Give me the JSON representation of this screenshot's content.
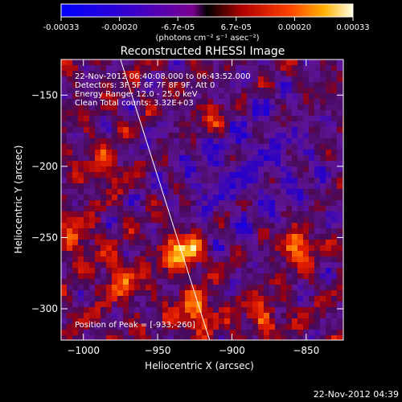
{
  "chart_data": {
    "type": "heatmap",
    "title": "Reconstructed RHESSI Image",
    "xlabel": "Heliocentric X (arcsec)",
    "ylabel": "Heliocentric Y (arcsec)",
    "xlim": [
      -1015,
      -825
    ],
    "ylim": [
      -322,
      -125
    ],
    "x_ticks": [
      -1000,
      -950,
      -900,
      -850
    ],
    "y_ticks": [
      -150,
      -200,
      -250,
      -300
    ],
    "colorbar": {
      "min": -0.00033,
      "max": 0.00033,
      "ticks": [
        "-0.00033",
        "-0.00020",
        "-6.7e-05",
        "6.7e-05",
        "0.00020",
        "0.00033"
      ],
      "label": "(photons cm⁻² s⁻¹ asec⁻²)"
    },
    "info_lines": [
      "22-Nov-2012 06:40:08.000 to 06:43:52.000",
      "Detectors: 3F 5F 6F 7F 8F 9F, Att 0",
      "Energy Range: 12.0 - 25.0 keV",
      "Clean    Total counts: 3.32E+03"
    ],
    "peak_text": "Position of Peak = [-933,-260]",
    "peak": [
      -933,
      -260
    ],
    "limb_line": [
      [
        -975,
        -125
      ],
      [
        -915,
        -322
      ]
    ],
    "hot_spots": [
      {
        "x": -933,
        "y": -260,
        "amp": 1.0
      },
      {
        "x": -925,
        "y": -302,
        "amp": 0.7
      },
      {
        "x": -857,
        "y": -256,
        "amp": 0.8
      },
      {
        "x": -975,
        "y": -278,
        "amp": 0.55
      },
      {
        "x": -985,
        "y": -200,
        "amp": 0.45
      },
      {
        "x": -915,
        "y": -165,
        "amp": 0.5
      },
      {
        "x": -1005,
        "y": -250,
        "amp": 0.45
      },
      {
        "x": -880,
        "y": -305,
        "amp": 0.45
      }
    ]
  },
  "footer_timestamp": "22-Nov-2012 04:39"
}
